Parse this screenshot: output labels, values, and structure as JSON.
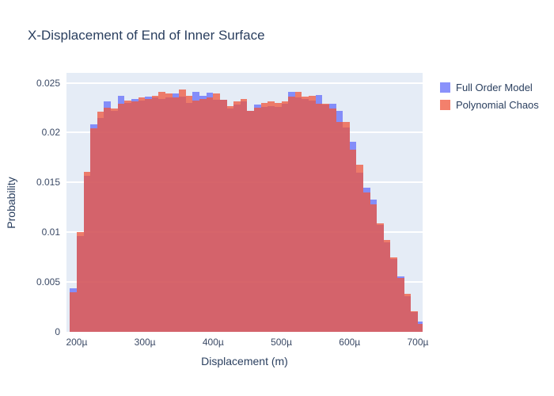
{
  "title": "X-Displacement of End of Inner Surface",
  "legend": {
    "items": [
      {
        "label": "Full Order Model",
        "color": "#636efa"
      },
      {
        "label": "Polynomial Chaos",
        "color": "#ef553b"
      }
    ]
  },
  "colors": {
    "plot_background": "#e5ecf6",
    "paper_background": "#ffffff",
    "grid": "#ffffff",
    "text": "#2a3f5f",
    "series_blue": "#636efa",
    "series_red": "#ef553b"
  },
  "chart_data": {
    "type": "bar",
    "subtype": "overlaid-histogram",
    "title": "X-Displacement of End of Inner Surface",
    "xlabel": "Displacement (m)",
    "ylabel": "Probability",
    "legend_position": "right-top-outside",
    "grid": "horizontal-only",
    "bar_opacity": 0.75,
    "bin_width_micro": 10,
    "x_range_micro": [
      185,
      707
    ],
    "ylim": [
      0,
      0.026
    ],
    "x_ticks": [
      {
        "value_micro": 200,
        "label": "200µ"
      },
      {
        "value_micro": 300,
        "label": "300µ"
      },
      {
        "value_micro": 400,
        "label": "400µ"
      },
      {
        "value_micro": 500,
        "label": "500µ"
      },
      {
        "value_micro": 600,
        "label": "600µ"
      },
      {
        "value_micro": 700,
        "label": "700µ"
      }
    ],
    "y_ticks": [
      {
        "value": 0,
        "label": "0"
      },
      {
        "value": 0.005,
        "label": "0.005"
      },
      {
        "value": 0.01,
        "label": "0.01"
      },
      {
        "value": 0.015,
        "label": "0.015"
      },
      {
        "value": 0.02,
        "label": "0.02"
      },
      {
        "value": 0.025,
        "label": "0.025"
      }
    ],
    "bin_starts_micro": [
      190,
      200,
      210,
      220,
      230,
      240,
      250,
      260,
      270,
      280,
      290,
      300,
      310,
      320,
      330,
      340,
      350,
      360,
      370,
      380,
      390,
      400,
      410,
      420,
      430,
      440,
      450,
      460,
      470,
      480,
      490,
      500,
      510,
      520,
      530,
      540,
      550,
      560,
      570,
      580,
      590,
      600,
      610,
      620,
      630,
      640,
      650,
      660,
      670,
      680,
      690,
      700
    ],
    "series": [
      {
        "name": "Full Order Model",
        "color": "#636efa",
        "values": [
          0.0044,
          0.0096,
          0.0157,
          0.0208,
          0.0215,
          0.0231,
          0.0222,
          0.0237,
          0.023,
          0.0234,
          0.0232,
          0.0236,
          0.0235,
          0.0234,
          0.0235,
          0.0239,
          0.0236,
          0.023,
          0.0241,
          0.0237,
          0.024,
          0.0233,
          0.0233,
          0.0224,
          0.0228,
          0.0231,
          0.0222,
          0.0228,
          0.0226,
          0.0227,
          0.0226,
          0.0229,
          0.0241,
          0.0235,
          0.0234,
          0.0232,
          0.0238,
          0.0228,
          0.0229,
          0.0222,
          0.0205,
          0.0191,
          0.016,
          0.0145,
          0.0133,
          0.0107,
          0.009,
          0.0073,
          0.0056,
          0.0036,
          0.002,
          0.001
        ]
      },
      {
        "name": "Polynomial Chaos",
        "color": "#ef553b",
        "values": [
          0.004,
          0.01,
          0.0161,
          0.0204,
          0.0221,
          0.0225,
          0.0224,
          0.0229,
          0.0232,
          0.0231,
          0.0235,
          0.0234,
          0.0237,
          0.0241,
          0.0239,
          0.0235,
          0.0243,
          0.0237,
          0.0232,
          0.0234,
          0.0235,
          0.0239,
          0.0233,
          0.0227,
          0.0231,
          0.0234,
          0.0222,
          0.0225,
          0.023,
          0.0231,
          0.023,
          0.0231,
          0.0236,
          0.0241,
          0.0236,
          0.0237,
          0.0229,
          0.0229,
          0.0224,
          0.0211,
          0.0211,
          0.0183,
          0.0168,
          0.014,
          0.0128,
          0.0109,
          0.0092,
          0.0075,
          0.0054,
          0.0038,
          0.0021,
          0.0008
        ]
      }
    ]
  }
}
